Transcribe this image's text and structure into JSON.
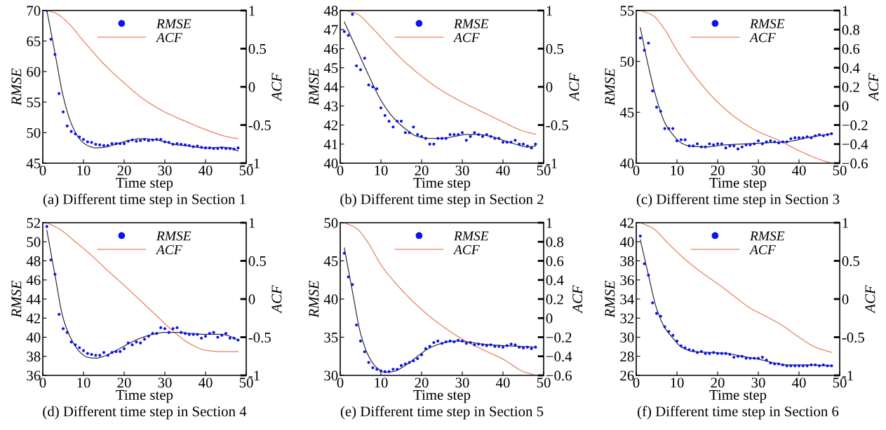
{
  "chart_data": [
    {
      "type": "scatter",
      "legend": "top",
      "xlabel": "Time step",
      "ylabel": "RMSE",
      "y2label": "ACF",
      "annotations": [
        "(a) Different time step in Section 1"
      ],
      "xlim": [
        0,
        50
      ],
      "xticks": [
        0,
        10,
        20,
        30,
        40,
        50
      ],
      "ylim": [
        45,
        70
      ],
      "yticks": [
        45,
        50,
        55,
        60,
        65,
        70
      ],
      "y2lim": [
        -1,
        1
      ],
      "y2ticks": [
        -1,
        -0.5,
        0,
        0.5,
        1
      ],
      "x": [
        1,
        2,
        3,
        4,
        5,
        6,
        7,
        8,
        9,
        10,
        11,
        12,
        13,
        14,
        15,
        16,
        17,
        18,
        19,
        20,
        21,
        22,
        23,
        24,
        25,
        26,
        27,
        28,
        29,
        30,
        31,
        32,
        33,
        34,
        35,
        36,
        37,
        38,
        39,
        40,
        41,
        42,
        43,
        44,
        45,
        46,
        47,
        48
      ],
      "series": [
        {
          "name": "RMSE",
          "marker": "circle",
          "color": "#0a14f0",
          "values": [
            70,
            65.3,
            62.8,
            56.4,
            53.4,
            51.1,
            50.2,
            49.8,
            49.3,
            48.9,
            48.5,
            48.4,
            48.1,
            48.0,
            47.9,
            47.9,
            48.2,
            48.2,
            48.2,
            48.2,
            48.6,
            48.8,
            48.6,
            48.7,
            48.9,
            48.7,
            48.8,
            48.9,
            48.9,
            48.5,
            48.4,
            48.1,
            48.2,
            48.1,
            48.0,
            47.9,
            47.7,
            47.8,
            47.6,
            47.5,
            47.5,
            47.4,
            47.4,
            47.5,
            47.4,
            47.4,
            47.3,
            47.5
          ]
        },
        {
          "type": "line",
          "color": "#333333",
          "x": [
            1,
            3,
            5,
            7,
            9,
            11,
            13,
            15,
            18,
            21,
            24,
            27,
            30,
            33,
            36,
            40,
            44,
            46,
            48
          ],
          "values": [
            70,
            63,
            56,
            51.5,
            49,
            47.9,
            47.5,
            47.6,
            48.1,
            48.7,
            49.0,
            48.9,
            48.5,
            48.0,
            47.8,
            47.5,
            47.6,
            47.5,
            47.0
          ]
        },
        {
          "name": "ACF",
          "type": "line",
          "axis": "y2",
          "color": "#e8825e",
          "x": [
            1,
            3,
            6,
            10,
            15,
            20,
            25,
            30,
            35,
            40,
            45,
            48
          ],
          "values": [
            1,
            0.97,
            0.85,
            0.6,
            0.3,
            0.05,
            -0.17,
            -0.33,
            -0.45,
            -0.56,
            -0.65,
            -0.68
          ]
        }
      ]
    },
    {
      "type": "scatter",
      "legend": "top",
      "xlabel": "Time step",
      "ylabel": "RMSE",
      "y2label": "ACF",
      "annotations": [
        "(b) Different time step in Section 2"
      ],
      "xlim": [
        0,
        50
      ],
      "xticks": [
        0,
        10,
        20,
        30,
        40,
        50
      ],
      "ylim": [
        40,
        48
      ],
      "yticks": [
        40,
        41,
        42,
        43,
        44,
        45,
        46,
        47,
        48
      ],
      "y2lim": [
        -1,
        1
      ],
      "y2ticks": [
        -1,
        -0.5,
        0,
        0.5,
        1
      ],
      "x": [
        1,
        2,
        3,
        4,
        5,
        6,
        7,
        8,
        9,
        10,
        11,
        12,
        13,
        14,
        15,
        16,
        17,
        18,
        19,
        20,
        21,
        22,
        23,
        24,
        25,
        26,
        27,
        28,
        29,
        30,
        31,
        32,
        33,
        34,
        35,
        36,
        37,
        38,
        39,
        40,
        41,
        42,
        43,
        44,
        45,
        46,
        47,
        48
      ],
      "series": [
        {
          "name": "RMSE",
          "marker": "circle",
          "color": "#0a14f0",
          "values": [
            46.9,
            46.7,
            47.8,
            45.1,
            44.9,
            45.5,
            44.1,
            44.0,
            43.9,
            42.9,
            42.5,
            42.2,
            41.9,
            42.2,
            42.2,
            41.6,
            41.6,
            41.9,
            41.5,
            41.4,
            41.3,
            41.0,
            41.0,
            41.3,
            41.3,
            41.3,
            41.5,
            41.5,
            41.5,
            41.6,
            41.2,
            41.4,
            41.6,
            41.5,
            41.4,
            41.5,
            41.4,
            41.3,
            41.3,
            41.1,
            41.1,
            41.1,
            41.2,
            41.0,
            41.0,
            40.9,
            40.8,
            41.0
          ]
        },
        {
          "type": "line",
          "color": "#333333",
          "x": [
            1,
            4,
            7,
            10,
            13,
            16,
            19,
            22,
            25,
            28,
            31,
            34,
            37,
            40,
            43,
            46,
            48
          ],
          "values": [
            47.4,
            46.0,
            44.6,
            43.3,
            42.4,
            41.8,
            41.4,
            41.3,
            41.3,
            41.4,
            41.5,
            41.5,
            41.4,
            41.2,
            41.0,
            40.85,
            40.9
          ]
        },
        {
          "name": "ACF",
          "type": "line",
          "axis": "y2",
          "color": "#e8825e",
          "x": [
            1,
            4,
            7,
            10,
            15,
            20,
            25,
            30,
            35,
            40,
            45,
            48
          ],
          "values": [
            1,
            0.96,
            0.82,
            0.65,
            0.37,
            0.14,
            -0.05,
            -0.2,
            -0.33,
            -0.46,
            -0.58,
            -0.62
          ]
        }
      ]
    },
    {
      "type": "scatter",
      "legend": "top",
      "xlabel": "Time step",
      "ylabel": "RMSE",
      "y2label": "ACF",
      "annotations": [
        "(c) Different time step in Section 3"
      ],
      "xlim": [
        0,
        50
      ],
      "xticks": [
        0,
        10,
        20,
        30,
        40,
        50
      ],
      "ylim": [
        40,
        55
      ],
      "yticks": [
        40,
        45,
        50,
        55
      ],
      "y2lim": [
        -0.6,
        1
      ],
      "y2ticks": [
        {
          "value": -0.6,
          "label": "−0.6"
        },
        {
          "value": -0.4,
          "label": "−0.4"
        },
        {
          "value": -0.2,
          "label": "−0.2"
        },
        0,
        0.2,
        0.4,
        0.6,
        0.8,
        1
      ],
      "x": [
        1,
        2,
        3,
        4,
        5,
        6,
        7,
        8,
        9,
        10,
        11,
        12,
        13,
        14,
        15,
        16,
        17,
        18,
        19,
        20,
        21,
        22,
        23,
        24,
        25,
        26,
        27,
        28,
        29,
        30,
        31,
        32,
        33,
        34,
        35,
        36,
        37,
        38,
        39,
        40,
        41,
        42,
        43,
        44,
        45,
        46,
        47,
        48
      ],
      "series": [
        {
          "name": "RMSE",
          "marker": "circle",
          "color": "#0a14f0",
          "values": [
            52.3,
            51.1,
            51.8,
            47.1,
            45.5,
            45.1,
            43.4,
            43.4,
            43.4,
            42.2,
            42.3,
            42.3,
            41.7,
            41.7,
            41.9,
            41.6,
            41.6,
            41.9,
            41.8,
            41.9,
            41.9,
            41.5,
            41.7,
            41.7,
            41.4,
            41.6,
            41.8,
            41.8,
            41.9,
            42.2,
            41.9,
            42.1,
            42.2,
            42.1,
            42.0,
            42.1,
            42.1,
            42.4,
            42.5,
            42.5,
            42.5,
            42.6,
            42.5,
            42.7,
            42.8,
            42.7,
            42.8,
            42.9
          ]
        },
        {
          "type": "line",
          "color": "#333333",
          "x": [
            1,
            3,
            5,
            7,
            9,
            11,
            13,
            17,
            22,
            27,
            32,
            37,
            42,
            48
          ],
          "values": [
            53.3,
            49.5,
            46.3,
            44.0,
            42.8,
            42.0,
            41.7,
            41.6,
            41.8,
            41.9,
            42.0,
            42.1,
            42.5,
            42.9
          ]
        },
        {
          "name": "ACF",
          "type": "line",
          "axis": "y2",
          "color": "#e8825e",
          "x": [
            1,
            4,
            7,
            10,
            15,
            20,
            25,
            30,
            35,
            40,
            45,
            48
          ],
          "values": [
            1,
            0.95,
            0.8,
            0.58,
            0.28,
            0.04,
            -0.14,
            -0.27,
            -0.36,
            -0.47,
            -0.56,
            -0.6
          ]
        }
      ]
    },
    {
      "type": "scatter",
      "legend": "top",
      "xlabel": "Time step",
      "ylabel": "RMSE",
      "y2label": "ACF",
      "annotations": [
        "(d) Different time step in Section 4"
      ],
      "xlim": [
        0,
        50
      ],
      "xticks": [
        0,
        10,
        20,
        30,
        40,
        50
      ],
      "ylim": [
        36,
        52
      ],
      "yticks": [
        36,
        38,
        40,
        42,
        44,
        46,
        48,
        50,
        52
      ],
      "y2lim": [
        -1,
        1
      ],
      "y2ticks": [
        -1,
        -0.5,
        0,
        0.5,
        1
      ],
      "x": [
        1,
        2,
        3,
        4,
        5,
        6,
        7,
        8,
        9,
        10,
        11,
        12,
        13,
        14,
        15,
        16,
        17,
        18,
        19,
        20,
        21,
        22,
        23,
        24,
        25,
        26,
        27,
        28,
        29,
        30,
        31,
        32,
        33,
        34,
        35,
        36,
        37,
        38,
        39,
        40,
        41,
        42,
        43,
        44,
        45,
        46,
        47,
        48
      ],
      "series": [
        {
          "name": "RMSE",
          "marker": "circle",
          "color": "#0a14f0",
          "values": [
            51.6,
            48.1,
            46.6,
            42.4,
            40.9,
            40.5,
            39.5,
            39.2,
            38.9,
            38.6,
            38.3,
            38.2,
            38.1,
            38.1,
            38.4,
            38.1,
            38.4,
            38.5,
            38.5,
            38.8,
            39.4,
            39.2,
            39.5,
            39.4,
            39.8,
            40.1,
            40.4,
            40.4,
            41.0,
            40.9,
            40.5,
            40.9,
            41.0,
            40.5,
            40.4,
            40.3,
            40.3,
            40.3,
            39.9,
            40.1,
            40.4,
            40.5,
            40.0,
            40.2,
            40.4,
            39.9,
            39.9,
            39.7
          ]
        },
        {
          "type": "line",
          "color": "#333333",
          "x": [
            1,
            3,
            5,
            7,
            9,
            11,
            13,
            15,
            18,
            21,
            24,
            27,
            30,
            33,
            36,
            40,
            44,
            46,
            48
          ],
          "values": [
            51.2,
            46.5,
            42.0,
            39.8,
            38.5,
            37.9,
            37.8,
            38.0,
            38.6,
            39.3,
            39.9,
            40.3,
            40.5,
            40.5,
            40.4,
            40.3,
            40.3,
            40.1,
            39.7
          ]
        },
        {
          "name": "ACF",
          "type": "line",
          "axis": "y2",
          "color": "#e8825e",
          "x": [
            1,
            4,
            8,
            12,
            16,
            20,
            24,
            28,
            32,
            36,
            40,
            44,
            48
          ],
          "values": [
            1,
            0.92,
            0.75,
            0.57,
            0.37,
            0.18,
            -0.02,
            -0.22,
            -0.42,
            -0.58,
            -0.67,
            -0.69,
            -0.69
          ]
        }
      ]
    },
    {
      "type": "scatter",
      "legend": "top",
      "xlabel": "Time step",
      "ylabel": "RMSE",
      "y2label": "ACF",
      "annotations": [
        "(e) Different time step in Section 5"
      ],
      "xlim": [
        0,
        50
      ],
      "xticks": [
        0,
        10,
        20,
        30,
        40,
        50
      ],
      "ylim": [
        30,
        50
      ],
      "yticks": [
        30,
        35,
        40,
        45,
        50
      ],
      "y2lim": [
        -0.6,
        1
      ],
      "y2ticks": [
        {
          "value": -0.6,
          "label": "−0.6"
        },
        {
          "value": -0.4,
          "label": "−0.4"
        },
        {
          "value": -0.2,
          "label": "−0.2"
        },
        0,
        0.2,
        0.4,
        0.6,
        0.8,
        1
      ],
      "x": [
        1,
        2,
        3,
        4,
        5,
        6,
        7,
        8,
        9,
        10,
        11,
        12,
        13,
        14,
        15,
        16,
        17,
        18,
        19,
        20,
        21,
        22,
        23,
        24,
        25,
        26,
        27,
        28,
        29,
        30,
        31,
        32,
        33,
        34,
        35,
        36,
        37,
        38,
        39,
        40,
        41,
        42,
        43,
        44,
        45,
        46,
        47,
        48
      ],
      "series": [
        {
          "name": "RMSE",
          "marker": "circle",
          "color": "#0a14f0",
          "values": [
            46.0,
            42.9,
            41.9,
            36.6,
            34.5,
            33.1,
            31.7,
            31.0,
            30.8,
            30.6,
            30.5,
            30.5,
            30.8,
            30.8,
            31.3,
            31.5,
            31.7,
            31.9,
            32.2,
            32.7,
            33.5,
            33.8,
            34.3,
            34.5,
            34.2,
            34.4,
            34.5,
            34.4,
            34.6,
            34.5,
            34.2,
            34.3,
            34.0,
            34.1,
            34.0,
            33.9,
            34.0,
            33.8,
            33.8,
            33.7,
            33.9,
            34.1,
            34.0,
            33.7,
            33.6,
            33.7,
            33.5,
            33.7
          ]
        },
        {
          "type": "line",
          "color": "#333333",
          "x": [
            1,
            3,
            5,
            7,
            9,
            11,
            13,
            16,
            19,
            22,
            25,
            28,
            31,
            35,
            40,
            44,
            48
          ],
          "values": [
            46.7,
            41.0,
            35.5,
            32.5,
            31.0,
            30.4,
            30.5,
            31.3,
            32.5,
            33.6,
            34.2,
            34.5,
            34.4,
            34.1,
            33.9,
            33.8,
            33.7
          ]
        },
        {
          "name": "ACF",
          "type": "line",
          "axis": "y2",
          "color": "#e8825e",
          "x": [
            1,
            4,
            7,
            10,
            15,
            20,
            25,
            30,
            35,
            40,
            45,
            48
          ],
          "values": [
            1,
            0.94,
            0.78,
            0.56,
            0.3,
            0.09,
            -0.08,
            -0.22,
            -0.33,
            -0.43,
            -0.56,
            -0.6
          ]
        }
      ]
    },
    {
      "type": "scatter",
      "legend": "top",
      "xlabel": "Time step",
      "ylabel": "RMSE",
      "y2label": "ACF",
      "annotations": [
        "(f) Different time step in Section 6"
      ],
      "xlim": [
        0,
        50
      ],
      "xticks": [
        0,
        10,
        20,
        30,
        40,
        50
      ],
      "ylim": [
        26,
        42
      ],
      "yticks": [
        26,
        28,
        30,
        32,
        34,
        36,
        38,
        40,
        42
      ],
      "y2lim": [
        -1,
        1
      ],
      "y2ticks": [
        -1,
        -0.5,
        0,
        0.5,
        1
      ],
      "x": [
        1,
        2,
        3,
        4,
        5,
        6,
        7,
        8,
        9,
        10,
        11,
        12,
        13,
        14,
        15,
        16,
        17,
        18,
        19,
        20,
        21,
        22,
        23,
        24,
        25,
        26,
        27,
        28,
        29,
        30,
        31,
        32,
        33,
        34,
        35,
        36,
        37,
        38,
        39,
        40,
        41,
        42,
        43,
        44,
        45,
        46,
        47,
        48
      ],
      "series": [
        {
          "name": "RMSE",
          "marker": "circle",
          "color": "#0a14f0",
          "values": [
            40.6,
            37.7,
            36.5,
            33.6,
            32.5,
            32.2,
            31.1,
            30.6,
            30.2,
            29.6,
            29.1,
            28.9,
            28.7,
            28.6,
            28.4,
            28.5,
            28.3,
            28.3,
            28.4,
            28.3,
            28.3,
            28.3,
            28.2,
            27.9,
            28.0,
            28.0,
            27.8,
            27.8,
            27.8,
            27.8,
            27.9,
            27.6,
            27.3,
            27.2,
            27.2,
            27.1,
            27.0,
            27.0,
            27.0,
            27.0,
            27.0,
            27.0,
            27.1,
            27.1,
            27.0,
            27.1,
            27.0,
            27.0
          ]
        },
        {
          "type": "line",
          "color": "#333333",
          "x": [
            1,
            3,
            5,
            7,
            9,
            11,
            14,
            18,
            22,
            26,
            30,
            34,
            37,
            42,
            48
          ],
          "values": [
            40.2,
            36.5,
            33.0,
            31.0,
            29.9,
            29.0,
            28.5,
            28.4,
            28.3,
            28.0,
            27.7,
            27.3,
            27.1,
            27.1,
            27.0
          ]
        },
        {
          "name": "ACF",
          "type": "line",
          "axis": "y2",
          "color": "#e8825e",
          "x": [
            1,
            4,
            8,
            12,
            16,
            20,
            24,
            28,
            32,
            36,
            40,
            44,
            48
          ],
          "values": [
            1,
            0.93,
            0.72,
            0.52,
            0.35,
            0.2,
            0.04,
            -0.12,
            -0.23,
            -0.35,
            -0.5,
            -0.63,
            -0.7
          ]
        }
      ]
    }
  ]
}
